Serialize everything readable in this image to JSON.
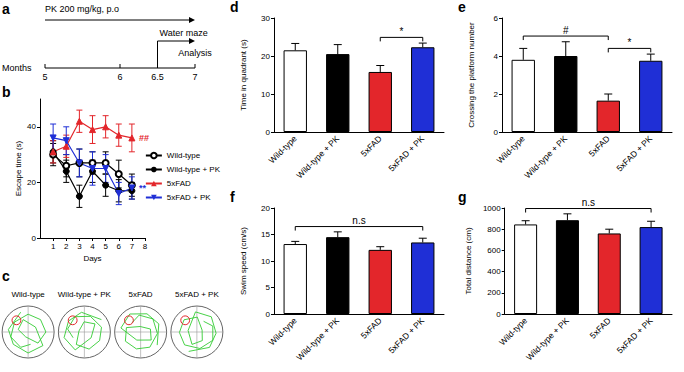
{
  "timeline": {
    "label": "a",
    "axis_label": "Months",
    "ticks": [
      5,
      6,
      6.5,
      7
    ],
    "treatment": {
      "text": "PK 200 mg/kg, p.o",
      "from": 5,
      "to": 7
    },
    "test": {
      "text": "Water maze",
      "from": 6.5,
      "to": 7
    },
    "end": {
      "text": "Analysis",
      "at": 7
    }
  },
  "chart_data": [
    {
      "label": "b",
      "type": "line",
      "x_label": "Days",
      "y_label": "Escape time (s)",
      "xlim": [
        0,
        8
      ],
      "xticks": [
        1,
        2,
        3,
        4,
        5,
        6,
        7,
        8
      ],
      "ylim": [
        0,
        50
      ],
      "yticks": [
        0,
        20,
        40
      ],
      "legend": "right",
      "x": [
        1,
        2,
        3,
        4,
        5,
        6,
        7
      ],
      "series": [
        {
          "name": "Wild-type",
          "color": "#000000",
          "marker": "open_circle",
          "values": [
            30,
            26,
            27,
            27,
            27,
            23,
            19
          ],
          "errors": [
            4,
            4,
            5,
            4,
            4,
            5,
            4
          ]
        },
        {
          "name": "Wild-type + PK",
          "color": "#000000",
          "marker": "circle",
          "values": [
            31,
            24,
            15,
            24,
            19,
            17,
            17
          ],
          "errors": [
            4,
            4,
            4,
            4,
            4,
            4,
            3
          ]
        },
        {
          "name": "5xFAD",
          "color": "#e3262b",
          "marker": "triangle",
          "values": [
            31,
            33,
            42,
            39,
            40,
            37,
            36
          ],
          "errors": [
            4,
            4,
            4,
            5,
            4,
            4,
            5
          ]
        },
        {
          "name": "5xFAD + PK",
          "color": "#1f2fd6",
          "marker": "triangle_down",
          "values": [
            36,
            35,
            27,
            25,
            25,
            16,
            18
          ],
          "errors": [
            5,
            5,
            5,
            6,
            5,
            4,
            4
          ]
        }
      ],
      "annotations": [
        {
          "text": "##",
          "series": "5xFAD"
        },
        {
          "text": "**",
          "series": "5xFAD + PK"
        }
      ]
    },
    {
      "label": "d",
      "type": "bar",
      "y_label": "Time in quadrant (s)",
      "categories": [
        "Wild-type",
        "Wild-type + PK",
        "5xFAD",
        "5xFAD + PK"
      ],
      "values": [
        21.5,
        20.5,
        15.8,
        22.3
      ],
      "errors": [
        1.8,
        2.5,
        1.7,
        1.1
      ],
      "colors": [
        "#ffffff",
        "#000000",
        "#e3262b",
        "#1f2fd6"
      ],
      "ylim": [
        0,
        30
      ],
      "yticks": [
        0,
        10,
        20,
        30
      ],
      "annotations": [
        {
          "text": "*",
          "between": [
            "5xFAD",
            "5xFAD + PK"
          ]
        }
      ]
    },
    {
      "label": "e",
      "type": "bar",
      "y_label": "Crossing the platform number",
      "categories": [
        "Wild-type",
        "Wild-type + PK",
        "5xFAD",
        "5xFAD + PK"
      ],
      "values": [
        3.8,
        4.0,
        1.65,
        3.75
      ],
      "errors": [
        0.6,
        0.75,
        0.35,
        0.35
      ],
      "colors": [
        "#ffffff",
        "#000000",
        "#e3262b",
        "#1f2fd6"
      ],
      "ylim": [
        0,
        6
      ],
      "yticks": [
        0,
        2,
        4,
        6
      ],
      "annotations": [
        {
          "text": "#",
          "between": [
            "Wild-type",
            "5xFAD"
          ]
        },
        {
          "text": "*",
          "between": [
            "5xFAD",
            "5xFAD + PK"
          ]
        }
      ]
    },
    {
      "label": "f",
      "type": "bar",
      "y_label": "Swim speed (cm/s)",
      "categories": [
        "Wild-type",
        "Wild-type + PK",
        "5xFAD",
        "5xFAD + PK"
      ],
      "values": [
        13.2,
        14.5,
        12.1,
        13.5
      ],
      "errors": [
        0.5,
        1.0,
        0.6,
        0.8
      ],
      "colors": [
        "#ffffff",
        "#000000",
        "#e3262b",
        "#1f2fd6"
      ],
      "ylim": [
        0,
        20
      ],
      "yticks": [
        0,
        5,
        10,
        15,
        20
      ],
      "annotations": [
        {
          "text": "n.s",
          "between": [
            "Wild-type",
            "5xFAD + PK"
          ]
        }
      ]
    },
    {
      "label": "g",
      "type": "bar",
      "y_label": "Total distance (cm)",
      "categories": [
        "Wild-type",
        "Wild-type + PK",
        "5xFAD",
        "5xFAD + PK"
      ],
      "values": [
        845,
        885,
        760,
        820
      ],
      "errors": [
        35,
        60,
        40,
        55
      ],
      "colors": [
        "#ffffff",
        "#000000",
        "#e3262b",
        "#1f2fd6"
      ],
      "ylim": [
        0,
        1000
      ],
      "yticks": [
        0,
        200,
        400,
        600,
        800,
        1000
      ],
      "annotations": [
        {
          "text": "n.s",
          "between": [
            "Wild-type",
            "5xFAD + PK"
          ]
        }
      ]
    }
  ],
  "swim_paths": {
    "label": "c",
    "groups": [
      "Wild-type",
      "Wild-type + PK",
      "5xFAD",
      "5xFAD + PK"
    ]
  }
}
